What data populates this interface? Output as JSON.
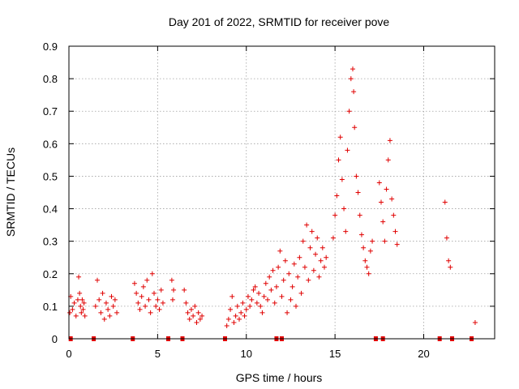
{
  "chart_data": {
    "type": "scatter",
    "title": "Day 201 of 2022, SRMTID for receiver pove",
    "xlabel": "GPS time / hours",
    "ylabel": "SRMTID / TECUs",
    "xlim": [
      0,
      24
    ],
    "ylim": [
      0,
      0.9
    ],
    "grid": true,
    "x_ticks": [
      "0",
      "5",
      "10",
      "15",
      "20"
    ],
    "y_ticks": [
      "0",
      "0.1",
      "0.2",
      "0.3",
      "0.4",
      "0.5",
      "0.6",
      "0.7",
      "0.8",
      "0.9"
    ],
    "marker": "+",
    "color": "#e00000",
    "series": [
      {
        "name": "SRMTID",
        "x": [
          0.05,
          0.1,
          0.2,
          0.3,
          0.4,
          0.5,
          0.55,
          0.6,
          0.65,
          0.7,
          0.75,
          0.8,
          0.85,
          0.9,
          1.5,
          1.6,
          1.7,
          1.8,
          1.9,
          2.0,
          2.1,
          2.2,
          2.3,
          2.4,
          2.5,
          2.6,
          2.7,
          3.7,
          3.8,
          3.9,
          4.0,
          4.1,
          4.2,
          4.3,
          4.4,
          4.5,
          4.6,
          4.7,
          4.8,
          4.9,
          5.0,
          5.1,
          5.2,
          5.3,
          5.8,
          5.85,
          5.9,
          6.5,
          6.6,
          6.7,
          6.8,
          6.9,
          7.0,
          7.1,
          7.2,
          7.3,
          7.4,
          7.5,
          8.9,
          9.0,
          9.1,
          9.2,
          9.3,
          9.4,
          9.5,
          9.6,
          9.7,
          9.8,
          9.9,
          10.0,
          10.1,
          10.2,
          10.3,
          10.4,
          10.5,
          10.6,
          10.7,
          10.8,
          10.9,
          11.0,
          11.1,
          11.2,
          11.3,
          11.4,
          11.5,
          11.6,
          11.7,
          11.8,
          11.9,
          12.0,
          12.1,
          12.2,
          12.3,
          12.4,
          12.5,
          12.6,
          12.7,
          12.8,
          12.9,
          13.0,
          13.1,
          13.2,
          13.3,
          13.4,
          13.5,
          13.6,
          13.7,
          13.8,
          13.9,
          14.0,
          14.1,
          14.2,
          14.3,
          14.4,
          14.5,
          14.9,
          15.0,
          15.1,
          15.2,
          15.3,
          15.4,
          15.5,
          15.6,
          15.7,
          15.8,
          15.9,
          16.0,
          16.05,
          16.1,
          16.2,
          16.3,
          16.4,
          16.5,
          16.6,
          16.7,
          16.8,
          16.9,
          17.0,
          17.1,
          17.5,
          17.6,
          17.7,
          17.8,
          17.9,
          18.0,
          18.1,
          18.2,
          18.3,
          18.4,
          18.5,
          21.2,
          21.3,
          21.4,
          21.5,
          22.9
        ],
        "y": [
          0.08,
          0.13,
          0.09,
          0.11,
          0.07,
          0.12,
          0.19,
          0.14,
          0.1,
          0.08,
          0.12,
          0.09,
          0.11,
          0.07,
          0.1,
          0.18,
          0.12,
          0.08,
          0.14,
          0.06,
          0.11,
          0.09,
          0.07,
          0.13,
          0.1,
          0.12,
          0.08,
          0.17,
          0.14,
          0.11,
          0.09,
          0.13,
          0.16,
          0.1,
          0.18,
          0.12,
          0.08,
          0.2,
          0.14,
          0.1,
          0.12,
          0.09,
          0.15,
          0.11,
          0.18,
          0.12,
          0.15,
          0.15,
          0.11,
          0.08,
          0.06,
          0.09,
          0.07,
          0.1,
          0.05,
          0.08,
          0.06,
          0.07,
          0.04,
          0.06,
          0.09,
          0.13,
          0.05,
          0.07,
          0.1,
          0.06,
          0.08,
          0.11,
          0.07,
          0.09,
          0.13,
          0.1,
          0.12,
          0.15,
          0.16,
          0.11,
          0.14,
          0.1,
          0.08,
          0.13,
          0.17,
          0.12,
          0.19,
          0.15,
          0.21,
          0.11,
          0.16,
          0.22,
          0.27,
          0.13,
          0.18,
          0.24,
          0.08,
          0.2,
          0.12,
          0.16,
          0.23,
          0.1,
          0.19,
          0.25,
          0.14,
          0.3,
          0.22,
          0.35,
          0.18,
          0.28,
          0.33,
          0.21,
          0.26,
          0.31,
          0.19,
          0.24,
          0.28,
          0.22,
          0.25,
          0.31,
          0.38,
          0.44,
          0.55,
          0.62,
          0.49,
          0.4,
          0.33,
          0.58,
          0.7,
          0.8,
          0.83,
          0.76,
          0.65,
          0.5,
          0.45,
          0.38,
          0.32,
          0.28,
          0.24,
          0.22,
          0.2,
          0.27,
          0.3,
          0.48,
          0.42,
          0.36,
          0.3,
          0.46,
          0.55,
          0.61,
          0.43,
          0.38,
          0.33,
          0.29,
          0.42,
          0.31,
          0.24,
          0.22,
          0.05
        ]
      }
    ],
    "gap_markers_x": [
      0.1,
      1.4,
      3.6,
      5.6,
      6.4,
      8.8,
      11.7,
      12.0,
      17.3,
      17.7,
      20.9,
      21.6,
      22.7
    ]
  }
}
